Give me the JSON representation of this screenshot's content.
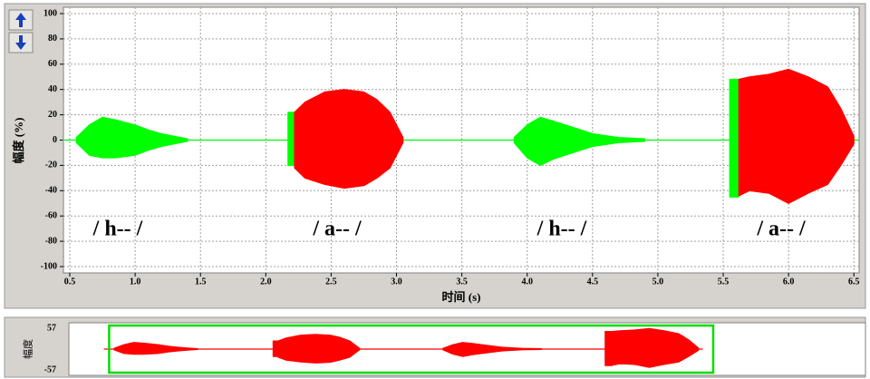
{
  "chart_data": {
    "type": "waveform",
    "xlabel": "时间 (s)",
    "ylabel": "幅度 (%)",
    "xlim": [
      0.45,
      6.54
    ],
    "ylim": [
      -100,
      100
    ],
    "xticks": [
      0.5,
      {
        "value": 1,
        "label": "1.0"
      },
      1.5,
      {
        "value": 2,
        "label": "2.0"
      },
      2.5,
      {
        "value": 3,
        "label": "3.0"
      },
      3.5,
      {
        "value": 4,
        "label": "4.0"
      },
      4.5,
      {
        "value": 5,
        "label": "5.0"
      },
      5.5,
      {
        "value": 6,
        "label": "6.0"
      },
      6.5
    ],
    "yticks": [
      100,
      80,
      60,
      40,
      20,
      0,
      -20,
      -40,
      -60,
      -80,
      -100
    ],
    "grid": true,
    "annotations": [
      "/ h-- /",
      "/ a-- /",
      "/ h-- /",
      "/ a-- /"
    ],
    "series": [
      {
        "color": "#00ff00",
        "x": [
          0.45,
          6.54
        ],
        "values": [
          0,
          0
        ],
        "lower": [
          0,
          0
        ]
      },
      {
        "color": "#00ff00",
        "x": [
          0.55,
          0.65,
          0.75,
          0.85,
          1.0,
          1.1,
          1.2,
          1.3,
          1.4
        ],
        "values": [
          2,
          12,
          18,
          16,
          12,
          8,
          5,
          3,
          1
        ],
        "lower": [
          -2,
          -12,
          -14,
          -14,
          -12,
          -8,
          -5,
          -3,
          -1
        ]
      },
      {
        "color": "#00ff00",
        "x": [
          2.17,
          2.22
        ],
        "values": [
          22,
          22
        ],
        "lower": [
          -20,
          -20
        ]
      },
      {
        "color": "#ff0000",
        "x": [
          2.22,
          2.3,
          2.45,
          2.6,
          2.75,
          2.85,
          2.95,
          3.0,
          3.05
        ],
        "values": [
          22,
          30,
          38,
          40,
          38,
          32,
          22,
          12,
          2
        ],
        "lower": [
          -22,
          -30,
          -35,
          -38,
          -36,
          -30,
          -22,
          -12,
          -2
        ]
      },
      {
        "color": "#00ff00",
        "x": [
          3.9,
          4.0,
          4.1,
          4.2,
          4.35,
          4.5,
          4.7,
          4.9
        ],
        "values": [
          2,
          12,
          18,
          15,
          10,
          5,
          2,
          1
        ],
        "lower": [
          -2,
          -14,
          -20,
          -15,
          -10,
          -5,
          -2,
          -1
        ]
      },
      {
        "color": "#00ff00",
        "x": [
          5.55,
          5.62
        ],
        "values": [
          48,
          48
        ],
        "lower": [
          -45,
          -45
        ]
      },
      {
        "color": "#ff0000",
        "x": [
          5.62,
          5.7,
          5.85,
          6.0,
          6.15,
          6.3,
          6.4,
          6.5
        ],
        "values": [
          48,
          50,
          52,
          56,
          50,
          42,
          25,
          3
        ],
        "lower": [
          -44,
          -40,
          -42,
          -50,
          -42,
          -35,
          -20,
          -3
        ]
      }
    ],
    "overview": {
      "ylabel": "幅度",
      "xlim": [
        0.09,
        8.2
      ],
      "ylim": [
        -57,
        57
      ],
      "yticks": [
        57,
        -57
      ],
      "color": "#ff0000",
      "selection_color": "#00dd00",
      "selection": [
        0.5,
        6.65
      ]
    }
  }
}
